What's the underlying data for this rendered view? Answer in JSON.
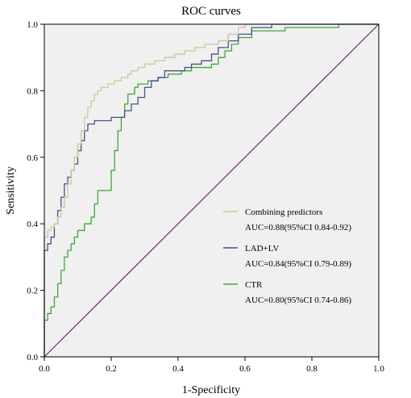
{
  "chart_data": {
    "type": "line",
    "title": "ROC curves",
    "xlabel": "1-Specificity",
    "ylabel": "Sensitivity",
    "xlim": [
      0,
      1
    ],
    "ylim": [
      0,
      1
    ],
    "xticks": [
      "0.0",
      "0.2",
      "0.4",
      "0.6",
      "0.8",
      "1.0"
    ],
    "yticks": [
      "0.0",
      "0.2",
      "0.4",
      "0.6",
      "0.8",
      "1.0"
    ],
    "grid": false,
    "legend_position": "bottom-right",
    "plot_background": "#f0f0f0",
    "reference_line": {
      "x": [
        0,
        1
      ],
      "y": [
        0,
        1
      ],
      "color": "#6b2a6b"
    },
    "series": [
      {
        "name": "Combining predictors",
        "auc_label": "AUC=0.88(95%CI 0.84-0.92)",
        "color": "#c9c79a",
        "points": [
          [
            0,
            0
          ],
          [
            0,
            0.36
          ],
          [
            0.01,
            0.36
          ],
          [
            0.01,
            0.38
          ],
          [
            0.02,
            0.38
          ],
          [
            0.02,
            0.39
          ],
          [
            0.03,
            0.39
          ],
          [
            0.03,
            0.4
          ],
          [
            0.04,
            0.4
          ],
          [
            0.04,
            0.42
          ],
          [
            0.05,
            0.42
          ],
          [
            0.05,
            0.45
          ],
          [
            0.06,
            0.45
          ],
          [
            0.06,
            0.48
          ],
          [
            0.07,
            0.48
          ],
          [
            0.07,
            0.52
          ],
          [
            0.08,
            0.52
          ],
          [
            0.08,
            0.56
          ],
          [
            0.09,
            0.56
          ],
          [
            0.09,
            0.6
          ],
          [
            0.1,
            0.6
          ],
          [
            0.1,
            0.64
          ],
          [
            0.11,
            0.64
          ],
          [
            0.11,
            0.68
          ],
          [
            0.12,
            0.68
          ],
          [
            0.12,
            0.72
          ],
          [
            0.13,
            0.72
          ],
          [
            0.13,
            0.75
          ],
          [
            0.14,
            0.75
          ],
          [
            0.14,
            0.77
          ],
          [
            0.15,
            0.77
          ],
          [
            0.15,
            0.79
          ],
          [
            0.16,
            0.79
          ],
          [
            0.16,
            0.8
          ],
          [
            0.17,
            0.8
          ],
          [
            0.17,
            0.81
          ],
          [
            0.19,
            0.81
          ],
          [
            0.19,
            0.82
          ],
          [
            0.21,
            0.82
          ],
          [
            0.21,
            0.83
          ],
          [
            0.23,
            0.83
          ],
          [
            0.23,
            0.84
          ],
          [
            0.25,
            0.84
          ],
          [
            0.25,
            0.85
          ],
          [
            0.26,
            0.85
          ],
          [
            0.26,
            0.86
          ],
          [
            0.28,
            0.86
          ],
          [
            0.28,
            0.87
          ],
          [
            0.3,
            0.87
          ],
          [
            0.3,
            0.88
          ],
          [
            0.33,
            0.88
          ],
          [
            0.33,
            0.89
          ],
          [
            0.36,
            0.89
          ],
          [
            0.36,
            0.9
          ],
          [
            0.39,
            0.9
          ],
          [
            0.39,
            0.91
          ],
          [
            0.42,
            0.91
          ],
          [
            0.42,
            0.92
          ],
          [
            0.45,
            0.92
          ],
          [
            0.45,
            0.93
          ],
          [
            0.48,
            0.93
          ],
          [
            0.48,
            0.94
          ],
          [
            0.52,
            0.94
          ],
          [
            0.52,
            0.95
          ],
          [
            0.55,
            0.95
          ],
          [
            0.55,
            0.97
          ],
          [
            0.58,
            0.97
          ],
          [
            0.58,
            0.99
          ],
          [
            0.6,
            0.99
          ],
          [
            0.6,
            1.0
          ],
          [
            0.98,
            1.0
          ],
          [
            1.0,
            1.0
          ]
        ]
      },
      {
        "name": "LAD+LV",
        "auc_label": "AUC=0.84(95%CI 0.79-0.89)",
        "color": "#4a4f8c",
        "points": [
          [
            0,
            0
          ],
          [
            0,
            0.32
          ],
          [
            0.01,
            0.32
          ],
          [
            0.01,
            0.34
          ],
          [
            0.02,
            0.34
          ],
          [
            0.02,
            0.36
          ],
          [
            0.03,
            0.36
          ],
          [
            0.03,
            0.4
          ],
          [
            0.04,
            0.4
          ],
          [
            0.04,
            0.44
          ],
          [
            0.05,
            0.44
          ],
          [
            0.05,
            0.48
          ],
          [
            0.06,
            0.48
          ],
          [
            0.06,
            0.52
          ],
          [
            0.07,
            0.52
          ],
          [
            0.07,
            0.54
          ],
          [
            0.08,
            0.54
          ],
          [
            0.08,
            0.56
          ],
          [
            0.09,
            0.56
          ],
          [
            0.09,
            0.58
          ],
          [
            0.1,
            0.58
          ],
          [
            0.1,
            0.62
          ],
          [
            0.11,
            0.62
          ],
          [
            0.11,
            0.65
          ],
          [
            0.12,
            0.65
          ],
          [
            0.12,
            0.68
          ],
          [
            0.13,
            0.68
          ],
          [
            0.13,
            0.7
          ],
          [
            0.15,
            0.7
          ],
          [
            0.15,
            0.71
          ],
          [
            0.2,
            0.71
          ],
          [
            0.2,
            0.72
          ],
          [
            0.24,
            0.72
          ],
          [
            0.24,
            0.74
          ],
          [
            0.26,
            0.74
          ],
          [
            0.26,
            0.76
          ],
          [
            0.28,
            0.76
          ],
          [
            0.28,
            0.78
          ],
          [
            0.3,
            0.78
          ],
          [
            0.3,
            0.81
          ],
          [
            0.32,
            0.81
          ],
          [
            0.32,
            0.83
          ],
          [
            0.34,
            0.83
          ],
          [
            0.34,
            0.84
          ],
          [
            0.36,
            0.84
          ],
          [
            0.36,
            0.86
          ],
          [
            0.42,
            0.86
          ],
          [
            0.42,
            0.87
          ],
          [
            0.44,
            0.87
          ],
          [
            0.44,
            0.88
          ],
          [
            0.47,
            0.88
          ],
          [
            0.47,
            0.89
          ],
          [
            0.5,
            0.89
          ],
          [
            0.5,
            0.91
          ],
          [
            0.52,
            0.91
          ],
          [
            0.52,
            0.93
          ],
          [
            0.55,
            0.93
          ],
          [
            0.55,
            0.95
          ],
          [
            0.58,
            0.95
          ],
          [
            0.58,
            0.97
          ],
          [
            0.62,
            0.97
          ],
          [
            0.62,
            0.99
          ],
          [
            0.68,
            0.99
          ],
          [
            0.68,
            1.0
          ],
          [
            0.98,
            1.0
          ],
          [
            1.0,
            1.0
          ]
        ]
      },
      {
        "name": "CTR",
        "auc_label": "AUC=0.80(95%CI 0.74-0.86)",
        "color": "#3aaa35",
        "points": [
          [
            0,
            0
          ],
          [
            0,
            0.11
          ],
          [
            0.01,
            0.11
          ],
          [
            0.01,
            0.13
          ],
          [
            0.02,
            0.13
          ],
          [
            0.02,
            0.15
          ],
          [
            0.03,
            0.15
          ],
          [
            0.03,
            0.18
          ],
          [
            0.04,
            0.18
          ],
          [
            0.04,
            0.22
          ],
          [
            0.05,
            0.22
          ],
          [
            0.05,
            0.26
          ],
          [
            0.06,
            0.26
          ],
          [
            0.06,
            0.3
          ],
          [
            0.07,
            0.3
          ],
          [
            0.07,
            0.32
          ],
          [
            0.08,
            0.32
          ],
          [
            0.08,
            0.34
          ],
          [
            0.09,
            0.34
          ],
          [
            0.09,
            0.36
          ],
          [
            0.1,
            0.36
          ],
          [
            0.1,
            0.38
          ],
          [
            0.12,
            0.38
          ],
          [
            0.12,
            0.4
          ],
          [
            0.14,
            0.4
          ],
          [
            0.14,
            0.42
          ],
          [
            0.15,
            0.42
          ],
          [
            0.15,
            0.46
          ],
          [
            0.16,
            0.46
          ],
          [
            0.16,
            0.5
          ],
          [
            0.2,
            0.5
          ],
          [
            0.2,
            0.56
          ],
          [
            0.21,
            0.56
          ],
          [
            0.21,
            0.62
          ],
          [
            0.22,
            0.62
          ],
          [
            0.22,
            0.68
          ],
          [
            0.23,
            0.68
          ],
          [
            0.23,
            0.72
          ],
          [
            0.24,
            0.72
          ],
          [
            0.24,
            0.76
          ],
          [
            0.25,
            0.76
          ],
          [
            0.25,
            0.79
          ],
          [
            0.27,
            0.79
          ],
          [
            0.27,
            0.81
          ],
          [
            0.28,
            0.81
          ],
          [
            0.28,
            0.82
          ],
          [
            0.31,
            0.82
          ],
          [
            0.31,
            0.83
          ],
          [
            0.34,
            0.83
          ],
          [
            0.34,
            0.84
          ],
          [
            0.37,
            0.84
          ],
          [
            0.37,
            0.85
          ],
          [
            0.41,
            0.85
          ],
          [
            0.41,
            0.86
          ],
          [
            0.44,
            0.86
          ],
          [
            0.44,
            0.87
          ],
          [
            0.5,
            0.87
          ],
          [
            0.5,
            0.88
          ],
          [
            0.52,
            0.88
          ],
          [
            0.52,
            0.9
          ],
          [
            0.54,
            0.9
          ],
          [
            0.54,
            0.92
          ],
          [
            0.56,
            0.92
          ],
          [
            0.56,
            0.94
          ],
          [
            0.58,
            0.94
          ],
          [
            0.58,
            0.96
          ],
          [
            0.62,
            0.96
          ],
          [
            0.62,
            0.98
          ],
          [
            0.72,
            0.98
          ],
          [
            0.72,
            0.99
          ],
          [
            0.88,
            0.99
          ],
          [
            0.88,
            1.0
          ],
          [
            0.98,
            1.0
          ],
          [
            1.0,
            1.0
          ]
        ]
      }
    ]
  }
}
